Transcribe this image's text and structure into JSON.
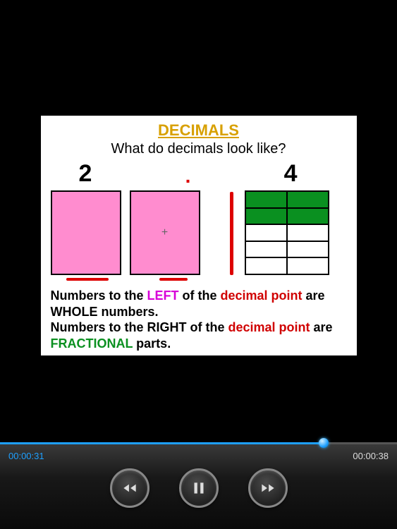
{
  "slide": {
    "title": "DECIMALS",
    "title_color": "#d8a000",
    "subtitle": "What do decimals look like?",
    "number_left": "2",
    "decimal_point": ".",
    "number_right": "4",
    "pink_color": "#ff8ccf",
    "green_color": "#0a9020",
    "red_color": "#d00000",
    "grid": {
      "rows": 5,
      "cols": 2,
      "filled": 4
    },
    "line1_a": "Numbers to the ",
    "line1_b": "LEFT",
    "line1_c": " of the ",
    "line1_d": "decimal point",
    "line1_e": " are WHOLE numbers.",
    "line2_a": "Numbers to the RIGHT of the ",
    "line2_b": "decimal point",
    "line2_c": " are ",
    "line2_d": "FRACTIONAL",
    "line2_e": " parts."
  },
  "player": {
    "current_time": "00:00:31",
    "total_time": "00:00:38",
    "progress_percent": 81.5,
    "accent_color": "#1ea0ff"
  }
}
